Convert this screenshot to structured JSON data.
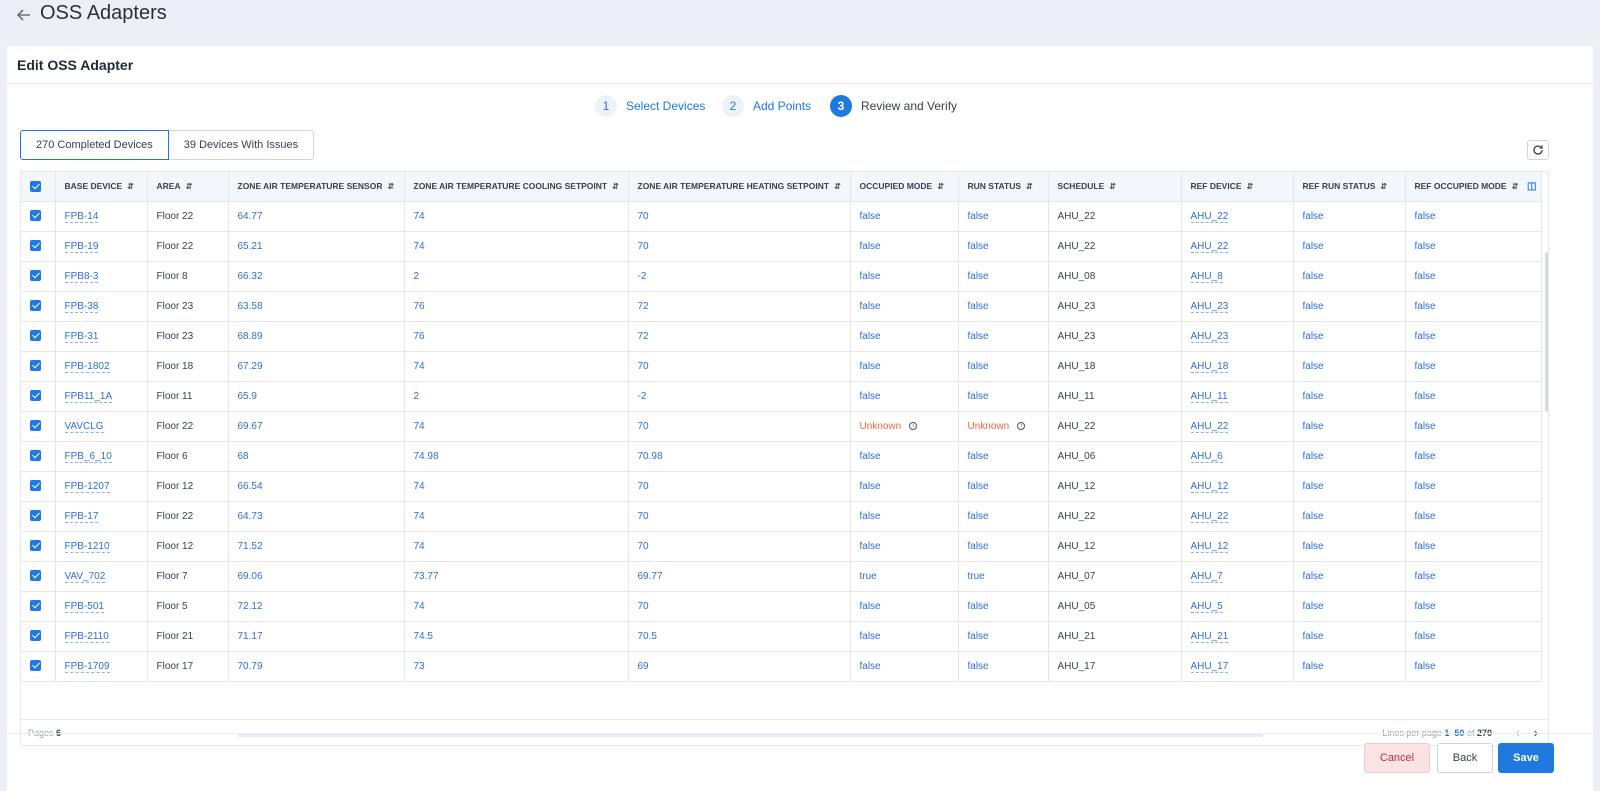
{
  "page": {
    "title": "OSS Adapters"
  },
  "card": {
    "title": "Edit OSS Adapter"
  },
  "steps": [
    {
      "num": "1",
      "label": "Select Devices"
    },
    {
      "num": "2",
      "label": "Add Points"
    },
    {
      "num": "3",
      "label": "Review and Verify"
    }
  ],
  "tabs": {
    "completed": "270 Completed Devices",
    "issues": "39 Devices With Issues"
  },
  "columns": [
    "BASE DEVICE",
    "AREA",
    "ZONE AIR TEMPERATURE SENSOR",
    "ZONE AIR TEMPERATURE COOLING SETPOINT",
    "ZONE AIR TEMPERATURE HEATING SETPOINT",
    "OCCUPIED MODE",
    "RUN STATUS",
    "SCHEDULE",
    "REF DEVICE",
    "REF RUN STATUS",
    "REF OCCUPIED MODE"
  ],
  "rows": [
    [
      "FPB-14",
      "Floor 22",
      "64.77",
      "74",
      "70",
      "false",
      "false",
      "AHU_22",
      "AHU_22",
      "false",
      "false"
    ],
    [
      "FPB-19",
      "Floor 22",
      "65.21",
      "74",
      "70",
      "false",
      "false",
      "AHU_22",
      "AHU_22",
      "false",
      "false"
    ],
    [
      "FPB8-3",
      "Floor 8",
      "66.32",
      "2",
      "-2",
      "false",
      "false",
      "AHU_08",
      "AHU_8",
      "false",
      "false"
    ],
    [
      "FPB-38",
      "Floor 23",
      "63.58",
      "76",
      "72",
      "false",
      "false",
      "AHU_23",
      "AHU_23",
      "false",
      "false"
    ],
    [
      "FPB-31",
      "Floor 23",
      "68.89",
      "76",
      "72",
      "false",
      "false",
      "AHU_23",
      "AHU_23",
      "false",
      "false"
    ],
    [
      "FPB-1802",
      "Floor 18",
      "67.29",
      "74",
      "70",
      "false",
      "false",
      "AHU_18",
      "AHU_18",
      "false",
      "false"
    ],
    [
      "FPB11_1A",
      "Floor 11",
      "65.9",
      "2",
      "-2",
      "false",
      "false",
      "AHU_11",
      "AHU_11",
      "false",
      "false"
    ],
    [
      "VAVCLG",
      "Floor 22",
      "69.67",
      "74",
      "70",
      "Unknown",
      "Unknown",
      "AHU_22",
      "AHU_22",
      "false",
      "false"
    ],
    [
      "FPB_6_10",
      "Floor 6",
      "68",
      "74.98",
      "70.98",
      "false",
      "false",
      "AHU_06",
      "AHU_6",
      "false",
      "false"
    ],
    [
      "FPB-1207",
      "Floor 12",
      "66.54",
      "74",
      "70",
      "false",
      "false",
      "AHU_12",
      "AHU_12",
      "false",
      "false"
    ],
    [
      "FPB-17",
      "Floor 22",
      "64.73",
      "74",
      "70",
      "false",
      "false",
      "AHU_22",
      "AHU_22",
      "false",
      "false"
    ],
    [
      "FPB-1210",
      "Floor 12",
      "71.52",
      "74",
      "70",
      "false",
      "false",
      "AHU_12",
      "AHU_12",
      "false",
      "false"
    ],
    [
      "VAV_702",
      "Floor 7",
      "69.06",
      "73.77",
      "69.77",
      "true",
      "true",
      "AHU_07",
      "AHU_7",
      "false",
      "false"
    ],
    [
      "FPB-501",
      "Floor 5",
      "72.12",
      "74",
      "70",
      "false",
      "false",
      "AHU_05",
      "AHU_5",
      "false",
      "false"
    ],
    [
      "FPB-2110",
      "Floor 21",
      "71.17",
      "74.5",
      "70.5",
      "false",
      "false",
      "AHU_21",
      "AHU_21",
      "false",
      "false"
    ],
    [
      "FPB-1709",
      "Floor 17",
      "70.79",
      "73",
      "69",
      "false",
      "false",
      "AHU_17",
      "AHU_17",
      "false",
      "false"
    ]
  ],
  "footer": {
    "pages_label": "Pages",
    "pages_value": "6",
    "lines_label": "Lines per page",
    "range": "1–50",
    "of": "of",
    "total": "270"
  },
  "buttons": {
    "cancel": "Cancel",
    "back": "Back",
    "save": "Save"
  }
}
